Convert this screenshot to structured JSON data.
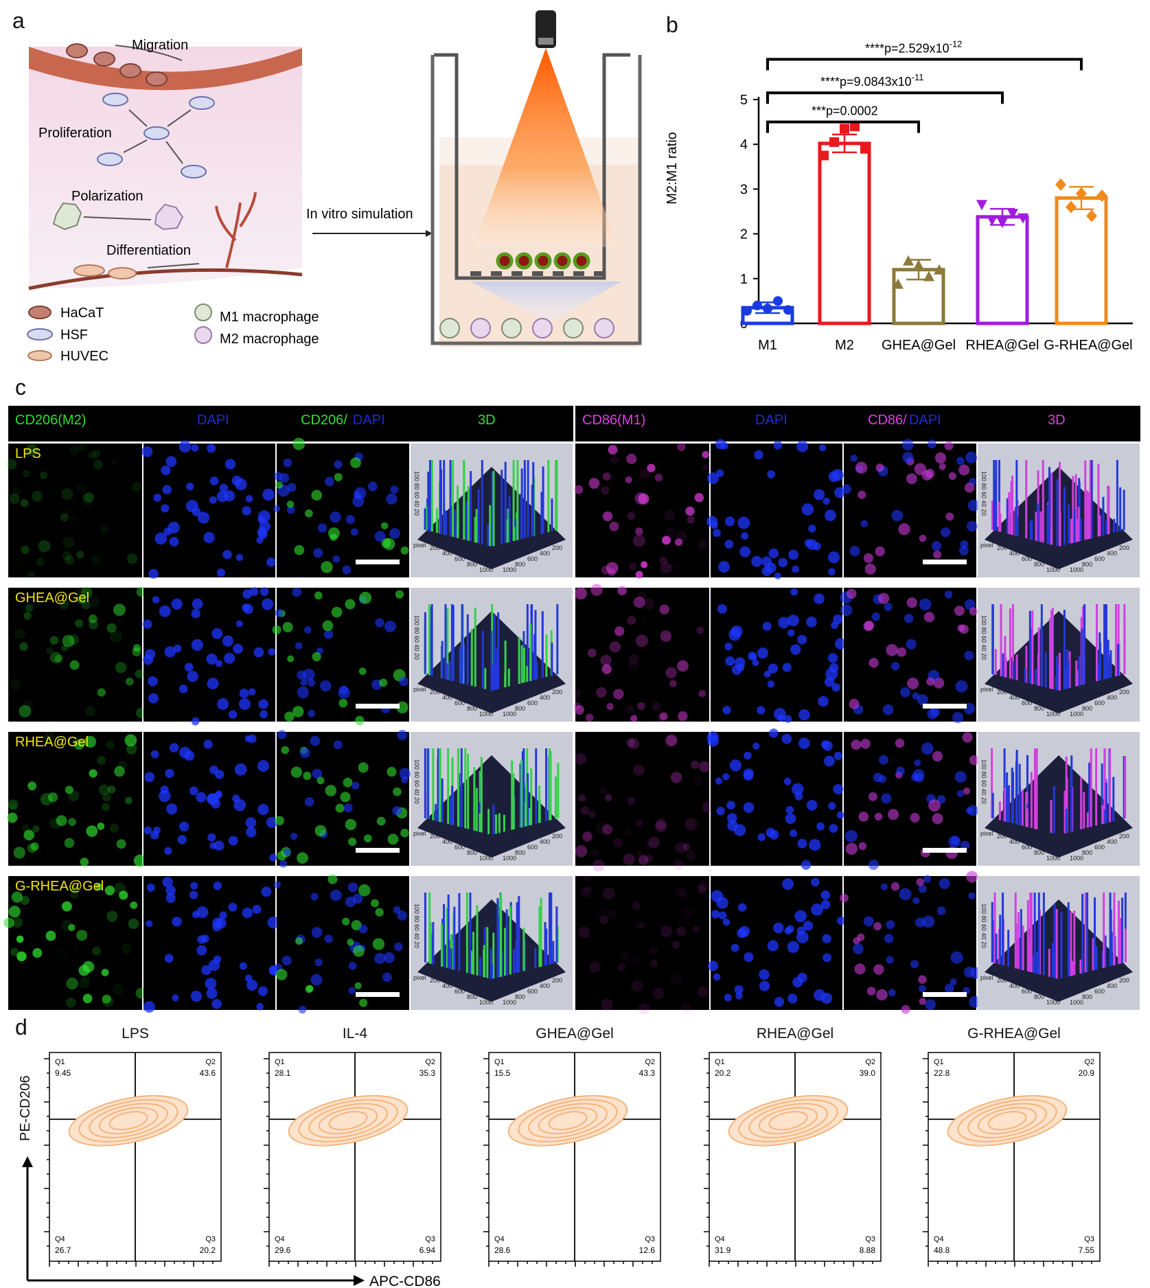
{
  "panels": {
    "a": "a",
    "b": "b",
    "c": "c",
    "d": "d"
  },
  "panel_a": {
    "stages": [
      "Migration",
      "Proliferation",
      "Polarization",
      "Differentiation"
    ],
    "arrow_label": "In vitro simulation",
    "legend": [
      "HaCaT",
      "HSF",
      "HUVEC",
      "M1 macrophage",
      "M2 macrophage"
    ]
  },
  "panel_c": {
    "left_headers": {
      "ch1": "CD206(M2)",
      "ch2": "DAPI",
      "merge_a": "CD206/",
      "merge_b": "DAPI",
      "ch4": "3D"
    },
    "right_headers": {
      "ch1": "CD86(M1)",
      "ch2": "DAPI",
      "merge_a": "CD86/",
      "merge_b": "DAPI",
      "ch4": "3D"
    },
    "rows": [
      "LPS",
      "GHEA@Gel",
      "RHEA@Gel",
      "G-RHEA@Gel"
    ],
    "axis_pixel": "pixel",
    "z_ticks": "100 80 60 40 20",
    "xy_ticks": [
      "200",
      "400",
      "600",
      "800",
      "1000"
    ]
  },
  "colors": {
    "m1": "#1a3be0",
    "m2": "#e8191e",
    "ghea": "#8b7a3a",
    "rhea": "#a21ce0",
    "grhea": "#f08a1a",
    "contour": "#f5b47a"
  },
  "chart_data": [
    {
      "type": "bar",
      "panel": "b",
      "ylabel": "M2:M1 ratio",
      "ylim": [
        0,
        5
      ],
      "yticks": [
        "0",
        "1",
        "2",
        "3",
        "4",
        "5"
      ],
      "categories": [
        "M1",
        "M2",
        "GHEA@Gel",
        "RHEA@Gel",
        "G-RHEA@Gel"
      ],
      "values": [
        0.35,
        4.02,
        1.2,
        2.38,
        2.8
      ],
      "errors": [
        0.12,
        0.2,
        0.22,
        0.18,
        0.25
      ],
      "points": [
        [
          0.28,
          0.4,
          0.33,
          0.5,
          0.3
        ],
        [
          3.75,
          4.05,
          4.35,
          4.4,
          3.9
        ],
        [
          0.88,
          1.4,
          1.3,
          1.05,
          1.2
        ],
        [
          2.65,
          2.3,
          2.25,
          2.45,
          2.35
        ],
        [
          3.1,
          2.6,
          2.9,
          2.4,
          2.85
        ]
      ],
      "markers": [
        "circle",
        "square",
        "triangle-up",
        "triangle-down",
        "diamond"
      ],
      "significance": [
        {
          "from": "M1",
          "to": "GHEA@Gel",
          "stars": "***",
          "text": "p=0.0002",
          "sup": "",
          "y": 4.5
        },
        {
          "from": "M1",
          "to": "RHEA@Gel",
          "stars": "****",
          "text": "p=9.0843x10",
          "sup": "-11",
          "y": 5.15
        },
        {
          "from": "M1",
          "to": "G-RHEA@Gel",
          "stars": "****",
          "text": "p=2.529x10",
          "sup": "-12",
          "y": 5.9
        }
      ]
    },
    {
      "type": "scatter",
      "panel": "d",
      "xlabel": "APC-CD86",
      "ylabel": "PE-CD206",
      "quadrant_names": [
        "Q1",
        "Q2",
        "Q3",
        "Q4"
      ],
      "groups": [
        {
          "name": "LPS",
          "q1": "9.45",
          "q2": "43.6",
          "q3": "20.2",
          "q4": "26.7"
        },
        {
          "name": "IL-4",
          "q1": "28.1",
          "q2": "35.3",
          "q3": "6.94",
          "q4": "29.6"
        },
        {
          "name": "GHEA@Gel",
          "q1": "15.5",
          "q2": "43.3",
          "q3": "12.6",
          "q4": "28.6"
        },
        {
          "name": "RHEA@Gel",
          "q1": "20.2",
          "q2": "39.0",
          "q3": "8.88",
          "q4": "31.9"
        },
        {
          "name": "G-RHEA@Gel",
          "q1": "22.8",
          "q2": "20.9",
          "q3": "7.55",
          "q4": "48.8"
        }
      ]
    }
  ]
}
